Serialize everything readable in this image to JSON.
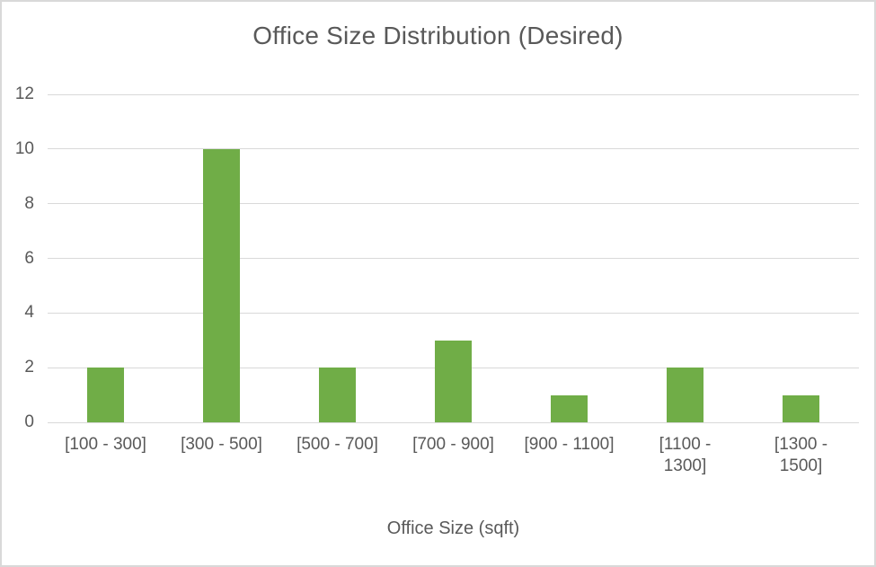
{
  "window": {
    "background": "#ffffff",
    "border_color": "#d9d9d9"
  },
  "chart_data": {
    "type": "bar",
    "title": "Office Size Distribution (Desired)",
    "xlabel": "Office Size (sqft)",
    "ylabel": "",
    "categories": [
      "[100 - 300]",
      "[300 - 500]",
      "[500 - 700]",
      "[700 - 900]",
      "[900 - 1100]",
      "[1100 - 1300]",
      "[1300 - 1500]"
    ],
    "values": [
      2,
      10,
      2,
      3,
      1,
      2,
      1
    ],
    "ylim": [
      0,
      12
    ],
    "yticks": [
      0,
      2,
      4,
      6,
      8,
      10,
      12
    ],
    "grid": true,
    "legend": false,
    "bar_color": "#70AD47",
    "text_color": "#595959",
    "gridline_color": "#d9d9d9",
    "tick_label_lines": [
      [
        "[100 - 300]"
      ],
      [
        "[300 - 500]"
      ],
      [
        "[500 - 700]"
      ],
      [
        "[700 - 900]"
      ],
      [
        "[900 - 1100]"
      ],
      [
        "[1100 -",
        "1300]"
      ],
      [
        "[1300 -",
        "1500]"
      ]
    ]
  }
}
